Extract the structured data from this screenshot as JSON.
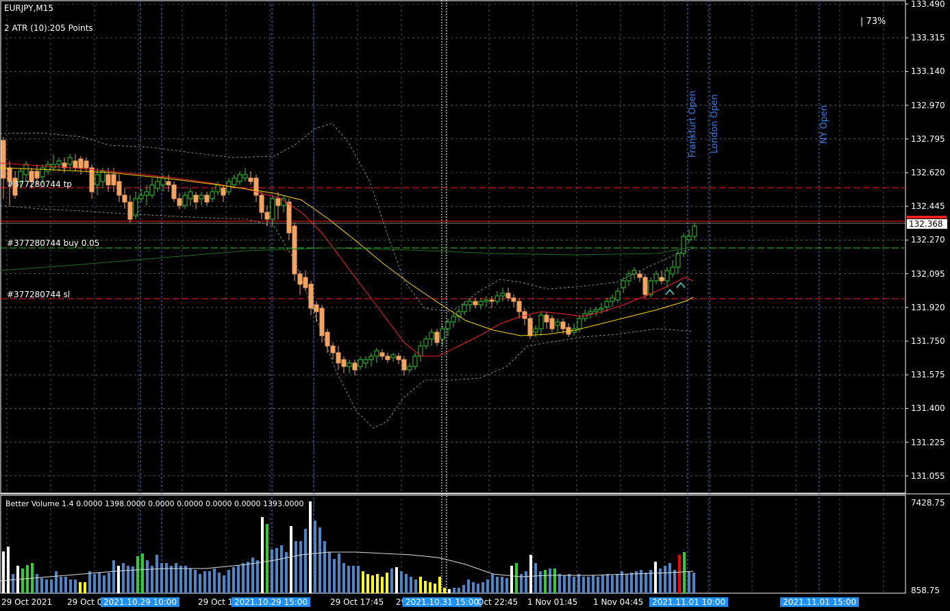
{
  "header": {
    "symbol": "EURJPY,M15",
    "atr": "2 ATR (10):205 Points",
    "percent": "| 73%"
  },
  "orders": {
    "tp": "#377280744 tp",
    "buy": "#377280744 buy 0.05",
    "sl": "#377280744 sl"
  },
  "current_price": "132.368",
  "price_axis": [
    "133.490",
    "133.315",
    "133.140",
    "132.970",
    "132.795",
    "132.620",
    "132.445",
    "132.270",
    "132.095",
    "131.920",
    "131.750",
    "131.575",
    "131.400",
    "131.225",
    "131.055"
  ],
  "sessions": {
    "frankfurt": "Frankfurt Open",
    "london": "London Open",
    "ny": "NY Open"
  },
  "volume": {
    "caption": "Better Volume 1.4 0.0000 1398.0000 0.0000 0.0000 0.0000 0.0000 1393.0000",
    "axis_top": "7428.75",
    "axis_bottom": "858.75"
  },
  "time_axis": {
    "t0": "29 Oct 2021",
    "t1": "29 Oct 0",
    "t2": "29 Oct 1",
    "t3": "29 Oct 17:45",
    "t4": "29",
    "t5": "Oct 22:45",
    "t6": "1 Nov 01:45",
    "t7": "1 Nov 04:45",
    "h1": "2021.10.29 10:00",
    "h2": "2021.10.29 15:00",
    "h3": "2021.10.31 15:00",
    "h4": "2021.11.01 10:00",
    "h5": "2021.11.01 15:00"
  },
  "colors": {
    "bull": "#32cd32",
    "bear": "#f4a460",
    "grid": "#778899",
    "session_line": "#3a7ee0",
    "ma_red": "#ff2020",
    "ma_yellow": "#ffd700",
    "ma_green": "#1e6e1e",
    "vol_blue": "#4a86c8",
    "vol_green": "#32cd32",
    "vol_yellow": "#ffff00",
    "vol_white": "#ffffff",
    "vol_red": "#ff0000"
  }
}
